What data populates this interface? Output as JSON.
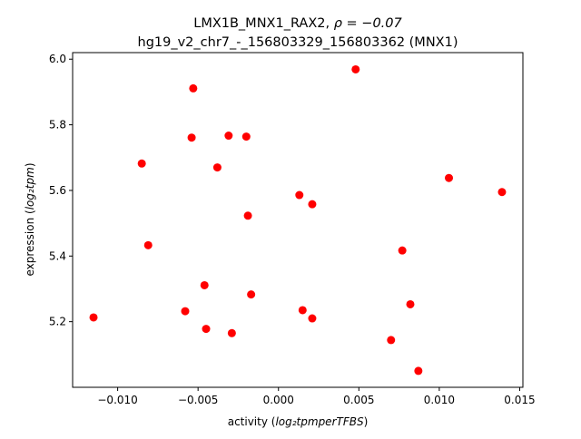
{
  "chart_data": {
    "type": "scatter",
    "title_line1_prefix": "LMX1B_MNX1_RAX2, ",
    "title_line1_rho": "ρ = −0.07",
    "title_line2": "hg19_v2_chr7_-_156803329_156803362 (MNX1)",
    "xlabel_prefix": "activity (",
    "xlabel_math": "log₂tpmperTFBS",
    "xlabel_suffix": ")",
    "ylabel_prefix": "expression (",
    "ylabel_math": "log₂tpm",
    "ylabel_suffix": ")",
    "xlim": [
      -0.0128,
      0.0152
    ],
    "ylim": [
      5.0,
      6.02
    ],
    "xticks": [
      -0.01,
      -0.005,
      0.0,
      0.005,
      0.01,
      0.015
    ],
    "xtick_labels": [
      "−0.010",
      "−0.005",
      "0.000",
      "0.005",
      "0.010",
      "0.015"
    ],
    "yticks": [
      5.2,
      5.4,
      5.6,
      5.8,
      6.0
    ],
    "ytick_labels": [
      "5.2",
      "5.4",
      "5.6",
      "5.8",
      "6.0"
    ],
    "marker_color": "#ff0000",
    "grid": false,
    "points": [
      {
        "x": 0.0048,
        "y": 5.969
      },
      {
        "x": -0.0053,
        "y": 5.911
      },
      {
        "x": -0.0031,
        "y": 5.767
      },
      {
        "x": -0.002,
        "y": 5.764
      },
      {
        "x": -0.0054,
        "y": 5.761
      },
      {
        "x": -0.0085,
        "y": 5.682
      },
      {
        "x": -0.0038,
        "y": 5.67
      },
      {
        "x": 0.0106,
        "y": 5.638
      },
      {
        "x": 0.0139,
        "y": 5.595
      },
      {
        "x": 0.0013,
        "y": 5.586
      },
      {
        "x": 0.0021,
        "y": 5.558
      },
      {
        "x": -0.0019,
        "y": 5.523
      },
      {
        "x": -0.0081,
        "y": 5.433
      },
      {
        "x": 0.0077,
        "y": 5.417
      },
      {
        "x": -0.0046,
        "y": 5.311
      },
      {
        "x": -0.0017,
        "y": 5.283
      },
      {
        "x": 0.0082,
        "y": 5.253
      },
      {
        "x": 0.0015,
        "y": 5.235
      },
      {
        "x": -0.0058,
        "y": 5.232
      },
      {
        "x": -0.0115,
        "y": 5.213
      },
      {
        "x": 0.0021,
        "y": 5.21
      },
      {
        "x": -0.0045,
        "y": 5.178
      },
      {
        "x": -0.0029,
        "y": 5.165
      },
      {
        "x": 0.007,
        "y": 5.144
      },
      {
        "x": 0.0087,
        "y": 5.05
      }
    ]
  }
}
